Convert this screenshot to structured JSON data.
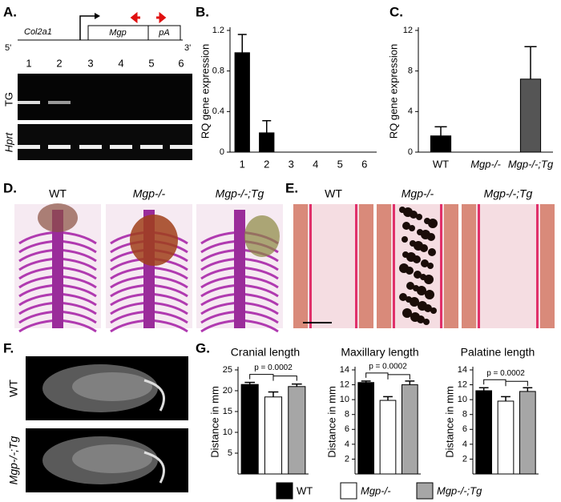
{
  "panel_labels": [
    "A.",
    "B.",
    "C.",
    "D.",
    "E.",
    "F.",
    "G."
  ],
  "construct": {
    "left": "5'",
    "right": "3'",
    "promoter": "Col2a1",
    "gene": "Mgp",
    "polya": "pA"
  },
  "gel": {
    "lanes": [
      "1",
      "2",
      "3",
      "4",
      "5",
      "6"
    ],
    "rows": [
      "TG",
      "Hprt"
    ]
  },
  "images_d": [
    "WT",
    "Mgp-/-",
    "Mgp-/-;Tg"
  ],
  "images_e": [
    "WT",
    "Mgp-/-",
    "Mgp-/-;Tg"
  ],
  "images_f": [
    "WT",
    "Mgp-/-;Tg"
  ],
  "legend": [
    {
      "name": "WT",
      "color": "#000000"
    },
    {
      "name": "Mgp-/-",
      "color": "#ffffff"
    },
    {
      "name": "Mgp-/-;Tg",
      "color": "#a6a6a6"
    }
  ],
  "chart_data": [
    {
      "type": "bar",
      "y_label": "RQ gene expression",
      "categories": [
        "1",
        "2",
        "3",
        "4",
        "5",
        "6"
      ],
      "values": [
        0.98,
        0.19,
        0,
        0,
        0,
        0
      ],
      "errors": [
        0.18,
        0.12,
        null,
        null,
        null,
        null
      ],
      "color": "#000000",
      "ylim": [
        0,
        1.2
      ],
      "yticks": [
        0,
        0.4,
        0.8,
        1.2
      ]
    },
    {
      "type": "bar",
      "y_label": "RQ gene expression",
      "categories": [
        "WT",
        "Mgp-/-",
        "Mgp-/-;Tg"
      ],
      "values": [
        1.6,
        0,
        7.2
      ],
      "errors": [
        0.9,
        null,
        3.2
      ],
      "colors": [
        "#000000",
        "#000000",
        "#555555"
      ],
      "ylim": [
        0,
        12
      ],
      "yticks": [
        0,
        4,
        8,
        12
      ]
    },
    {
      "type": "bar",
      "title": "Cranial length",
      "y_label": "Distance in mm",
      "annotation": "p = 0.0002",
      "values": [
        21.5,
        18.5,
        21.0
      ],
      "errors": [
        0.5,
        1.2,
        0.6
      ],
      "ylim": [
        0,
        25
      ],
      "yticks": [
        5,
        10,
        15,
        20,
        25
      ]
    },
    {
      "type": "bar",
      "title": "Maxillary length",
      "y_label": "Distance in mm",
      "annotation": "p = 0.0002",
      "values": [
        12.3,
        9.9,
        12.0
      ],
      "errors": [
        0.2,
        0.5,
        0.5
      ],
      "ylim": [
        0,
        14
      ],
      "yticks": [
        2,
        4,
        6,
        8,
        10,
        12,
        14
      ]
    },
    {
      "type": "bar",
      "title": "Palatine length",
      "y_label": "Distance in mm",
      "annotation": "p = 0.0002",
      "values": [
        11.2,
        9.8,
        11.1
      ],
      "errors": [
        0.4,
        0.6,
        0.5
      ],
      "ylim": [
        0,
        14
      ],
      "yticks": [
        2,
        4,
        6,
        8,
        10,
        12,
        14
      ]
    }
  ]
}
